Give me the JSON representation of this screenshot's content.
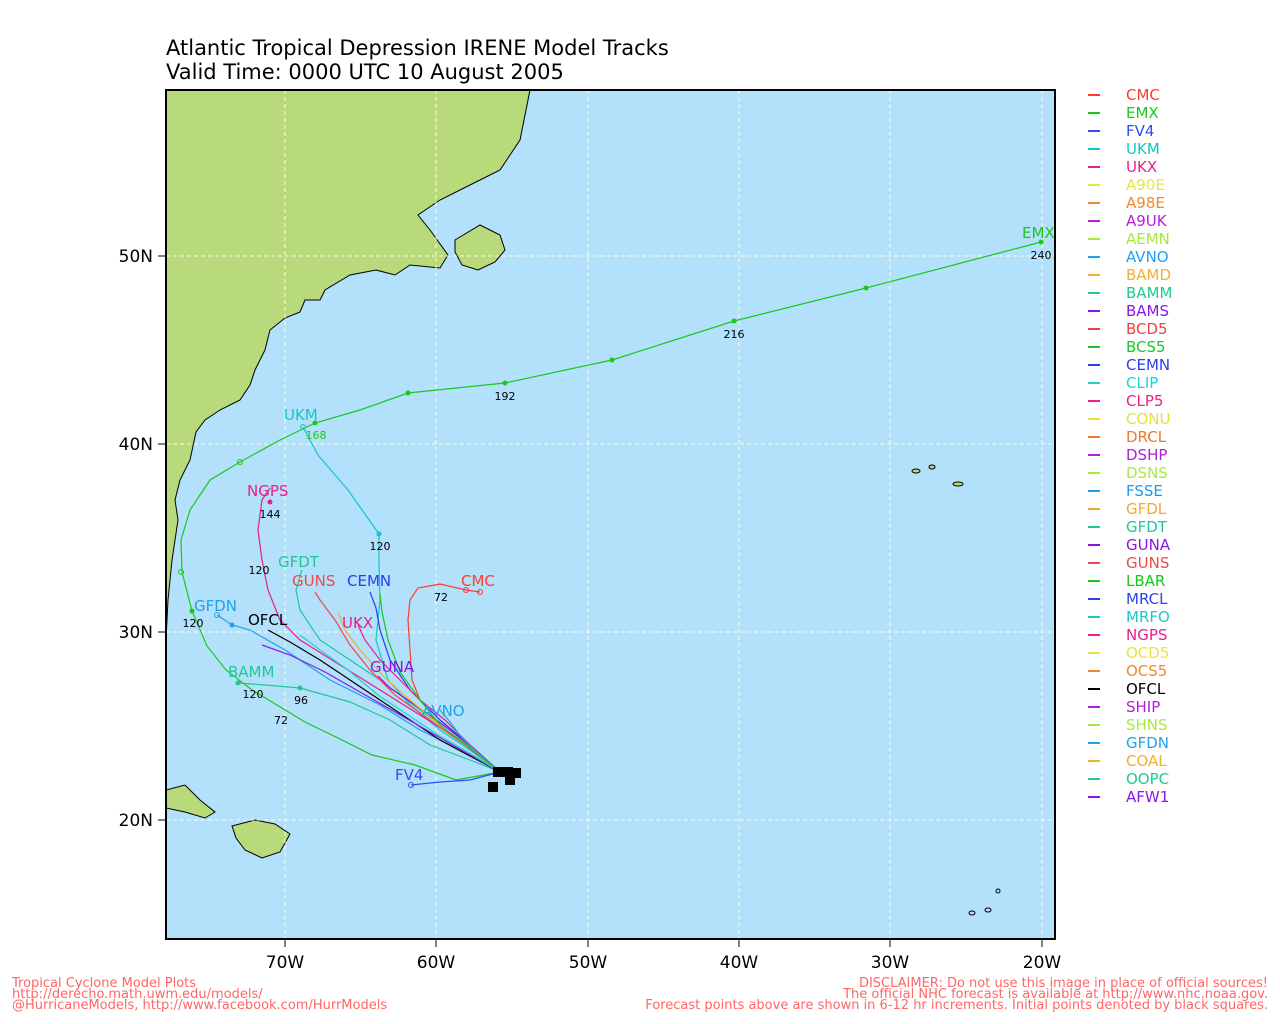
{
  "title": {
    "line1": "Atlantic Tropical Depression IRENE Model Tracks",
    "line2": "Valid Time: 0000 UTC 10 August 2005"
  },
  "axes": {
    "lat_ticks": [
      "50N",
      "40N",
      "30N",
      "20N"
    ],
    "lon_ticks": [
      "70W",
      "60W",
      "50W",
      "40W",
      "30W",
      "20W"
    ]
  },
  "colors": {
    "ocean": "#b3e0fb",
    "land": "#b9da7a",
    "grid": "#fffbe0",
    "footer": "#ff6666"
  },
  "legend": [
    {
      "name": "CMC",
      "color": "#ff3b30"
    },
    {
      "name": "EMX",
      "color": "#19c919"
    },
    {
      "name": "FV4",
      "color": "#2f4ff0"
    },
    {
      "name": "UKM",
      "color": "#10c8c8"
    },
    {
      "name": "UKX",
      "color": "#ea1e8c"
    },
    {
      "name": "A90E",
      "color": "#e6e640"
    },
    {
      "name": "A98E",
      "color": "#f08a2a"
    },
    {
      "name": "A9UK",
      "color": "#b81ed4"
    },
    {
      "name": "AEMN",
      "color": "#a3ea3a"
    },
    {
      "name": "AVNO",
      "color": "#1ea3ea"
    },
    {
      "name": "BAMD",
      "color": "#f0b030"
    },
    {
      "name": "BAMM",
      "color": "#20c896"
    },
    {
      "name": "BAMS",
      "color": "#8a18e8"
    },
    {
      "name": "BCD5",
      "color": "#f04040"
    },
    {
      "name": "BCS5",
      "color": "#16c82a"
    },
    {
      "name": "CEMN",
      "color": "#2a3ef0"
    },
    {
      "name": "CLIP",
      "color": "#1ed2d2"
    },
    {
      "name": "CLP5",
      "color": "#f01e86"
    },
    {
      "name": "CONU",
      "color": "#e2e23a"
    },
    {
      "name": "DRCL",
      "color": "#f07a2a"
    },
    {
      "name": "DSHP",
      "color": "#b020d8"
    },
    {
      "name": "DSNS",
      "color": "#a8ea3e"
    },
    {
      "name": "FSSE",
      "color": "#1e9ae8"
    },
    {
      "name": "GFDL",
      "color": "#f0a830"
    },
    {
      "name": "GFDT",
      "color": "#1ec896"
    },
    {
      "name": "GUNA",
      "color": "#8818e0"
    },
    {
      "name": "GUNS",
      "color": "#f04848"
    },
    {
      "name": "LBAR",
      "color": "#18c818"
    },
    {
      "name": "MRCL",
      "color": "#2a44f0"
    },
    {
      "name": "MRFO",
      "color": "#1ec8c8"
    },
    {
      "name": "NGPS",
      "color": "#ea1e8c"
    },
    {
      "name": "OCD5",
      "color": "#e6e640"
    },
    {
      "name": "OCS5",
      "color": "#f08a2a"
    },
    {
      "name": "OFCL",
      "color": "#000000"
    },
    {
      "name": "SHIP",
      "color": "#b020d8"
    },
    {
      "name": "SHNS",
      "color": "#a8ea3e"
    },
    {
      "name": "GFDN",
      "color": "#1ea3ea"
    },
    {
      "name": "COAL",
      "color": "#f0b030"
    },
    {
      "name": "OOPC",
      "color": "#20c896"
    },
    {
      "name": "AFW1",
      "color": "#8a18e8"
    }
  ],
  "track_labels": [
    {
      "name": "EMX",
      "color": "#19c919",
      "hours": [
        "168",
        "192",
        "216",
        "240"
      ]
    },
    {
      "name": "UKM",
      "color": "#10c8c8",
      "hours": [
        "120",
        "168"
      ]
    },
    {
      "name": "NGPS",
      "color": "#ea1e8c",
      "hours": [
        "120",
        "144"
      ]
    },
    {
      "name": "CMC",
      "color": "#ff3b30",
      "hours": [
        "72"
      ]
    },
    {
      "name": "GFDN",
      "color": "#1ea3ea",
      "hours": [
        "120"
      ]
    },
    {
      "name": "BAMM",
      "color": "#20c896",
      "hours": [
        "72",
        "96",
        "120"
      ]
    },
    {
      "name": "FV4",
      "color": "#2f4ff0",
      "hours": []
    },
    {
      "name": "OFCL",
      "color": "#000000",
      "hours": []
    },
    {
      "name": "GFDT",
      "color": "#1ec896",
      "hours": []
    },
    {
      "name": "GUNS",
      "color": "#f04848",
      "hours": []
    },
    {
      "name": "CEMN",
      "color": "#2a3ef0",
      "hours": []
    },
    {
      "name": "UKX",
      "color": "#ea1e8c",
      "hours": []
    },
    {
      "name": "GUNA",
      "color": "#8818e0",
      "hours": []
    },
    {
      "name": "AVNO",
      "color": "#1ea3ea",
      "hours": []
    }
  ],
  "footer": {
    "left1": "Tropical Cyclone Model Plots",
    "left2": "http://derecho.math.uwm.edu/models/",
    "left3": "@HurricaneModels, http://www.facebook.com/HurrModels",
    "right1": "DISCLAIMER: Do not use this image in place of official sources!",
    "right2": "The official NHC forecast is available at http://www.nhc.noaa.gov.",
    "right3": "Forecast points above are shown in 6-12 hr increments. Initial points denoted by black squares."
  }
}
